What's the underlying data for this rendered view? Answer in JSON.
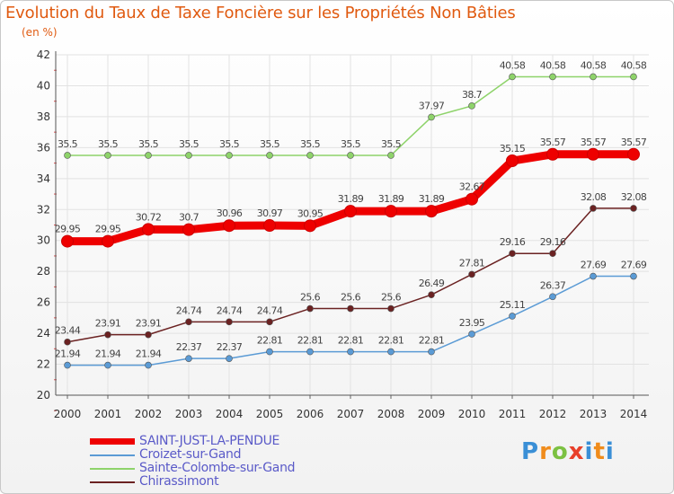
{
  "title": "Evolution du Taux de Taxe Foncière sur les Propriétés Non Bâties",
  "unit": "(en %)",
  "chart_data": {
    "type": "line",
    "x": [
      "2000",
      "2001",
      "2002",
      "2003",
      "2004",
      "2005",
      "2006",
      "2007",
      "2008",
      "2009",
      "2010",
      "2011",
      "2012",
      "2013",
      "2014"
    ],
    "ylim": [
      20,
      42
    ],
    "yticks": [
      20,
      22,
      24,
      26,
      28,
      30,
      32,
      34,
      36,
      38,
      40,
      42
    ],
    "grid": true,
    "legend_position": "bottom-left",
    "series": [
      {
        "name": "SAINT-JUST-LA-PENDUE",
        "color": "#ee0000",
        "values": [
          29.95,
          29.95,
          30.72,
          30.7,
          30.96,
          30.97,
          30.95,
          31.89,
          31.89,
          31.89,
          32.67,
          35.15,
          35.57,
          35.57,
          35.57
        ],
        "labels": [
          "29.95",
          "29.95",
          "30.72",
          "30.7",
          "30.96",
          "30.97",
          "30.95",
          "31.89",
          "31.89",
          "31.89",
          "32.67",
          "35.15",
          "35.57",
          "35.57",
          "35.57"
        ]
      },
      {
        "name": "Croizet-sur-Gand",
        "color": "#5b9bd5",
        "values": [
          21.94,
          21.94,
          21.94,
          22.37,
          22.37,
          22.81,
          22.81,
          22.81,
          22.81,
          22.81,
          23.95,
          25.11,
          26.37,
          27.69,
          27.69
        ],
        "labels": [
          "21.94",
          "21.94",
          "21.94",
          "22.37",
          "22.37",
          "22.81",
          "22.81",
          "22.81",
          "22.81",
          "22.81",
          "23.95",
          "25.11",
          "26.37",
          "27.69",
          "27.69"
        ]
      },
      {
        "name": "Sainte-Colombe-sur-Gand",
        "color": "#8ed36a",
        "values": [
          35.5,
          35.5,
          35.5,
          35.5,
          35.5,
          35.5,
          35.5,
          35.5,
          35.5,
          37.97,
          38.7,
          40.58,
          40.58,
          40.58,
          40.58
        ],
        "labels": [
          "35.5",
          "35.5",
          "35.5",
          "35.5",
          "35.5",
          "35.5",
          "35.5",
          "35.5",
          "35.5",
          "37.97",
          "38.7",
          "40.58",
          "40.58",
          "40.58",
          "40.58"
        ]
      },
      {
        "name": "Chirassimont",
        "color": "#6b2222",
        "values": [
          23.44,
          23.91,
          23.91,
          24.74,
          24.74,
          24.74,
          25.6,
          25.6,
          25.6,
          26.49,
          27.81,
          29.16,
          29.16,
          32.08,
          32.08
        ],
        "labels": [
          "23.44",
          "23.91",
          "23.91",
          "24.74",
          "24.74",
          "24.74",
          "25.6",
          "25.6",
          "25.6",
          "26.49",
          "27.81",
          "29.16",
          "29.16",
          "32.08",
          "32.08"
        ]
      }
    ]
  },
  "logo": {
    "p": "P",
    "r": "r",
    "o": "o",
    "x": "x",
    "i": "i",
    "t": "t",
    "i2": "i"
  }
}
